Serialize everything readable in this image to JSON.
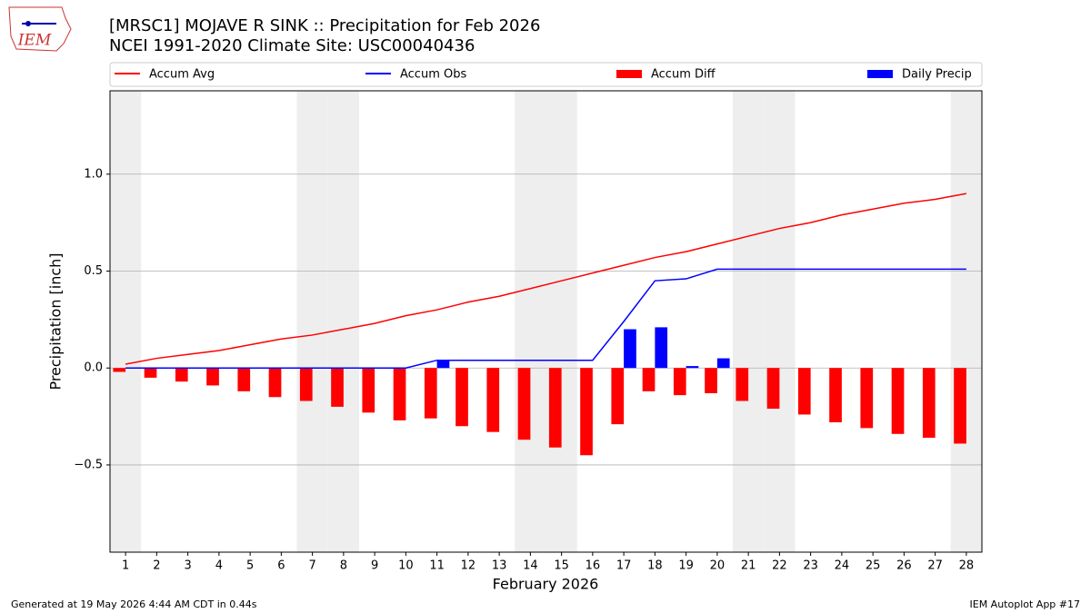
{
  "logo": "IEM",
  "footer": {
    "left": "Generated at 19 May 2026 4:44 AM CDT in 0.44s",
    "right": "IEM Autoplot App #17"
  },
  "chart_data": {
    "type": "combo",
    "title": "[MRSC1] MOJAVE R SINK :: Precipitation for Feb 2026",
    "subtitle": "NCEI 1991-2020 Climate Site: USC00040436",
    "x_label": "February 2026",
    "y_label": "Precipitation [inch]",
    "x": [
      1,
      2,
      3,
      4,
      5,
      6,
      7,
      8,
      9,
      10,
      11,
      12,
      13,
      14,
      15,
      16,
      17,
      18,
      19,
      20,
      21,
      22,
      23,
      24,
      25,
      26,
      27,
      28
    ],
    "xlim": [
      0.5,
      28.5
    ],
    "xticks": [
      1,
      2,
      3,
      4,
      5,
      6,
      7,
      8,
      9,
      10,
      11,
      12,
      13,
      14,
      15,
      16,
      17,
      18,
      19,
      20,
      21,
      22,
      23,
      24,
      25,
      26,
      27,
      28
    ],
    "ylim": [
      -0.95,
      1.43
    ],
    "yticks": [
      {
        "value": -0.5,
        "label": "−0.5"
      },
      {
        "value": 0,
        "label": "0.0"
      },
      {
        "value": 0.5,
        "label": "0.5"
      },
      {
        "value": 1,
        "label": "1.0"
      }
    ],
    "grid": true,
    "shaded_days": [
      1,
      7,
      8,
      14,
      15,
      21,
      22,
      28
    ],
    "series": [
      {
        "name": "Accum Avg",
        "kind": "line",
        "color": "#ff0000",
        "values": [
          0.02,
          0.05,
          0.07,
          0.09,
          0.12,
          0.15,
          0.17,
          0.2,
          0.23,
          0.27,
          0.3,
          0.34,
          0.37,
          0.41,
          0.45,
          0.49,
          0.53,
          0.57,
          0.6,
          0.64,
          0.68,
          0.72,
          0.75,
          0.79,
          0.82,
          0.85,
          0.87,
          0.9
        ]
      },
      {
        "name": "Accum Obs",
        "kind": "line",
        "color": "#0000ff",
        "values": [
          0,
          0,
          0,
          0,
          0,
          0,
          0,
          0,
          0,
          0,
          0.04,
          0.04,
          0.04,
          0.04,
          0.04,
          0.04,
          0.24,
          0.45,
          0.46,
          0.51,
          0.51,
          0.51,
          0.51,
          0.51,
          0.51,
          0.51,
          0.51,
          0.51
        ]
      },
      {
        "name": "Accum Diff",
        "kind": "bar",
        "color": "#ff0000",
        "values": [
          -0.02,
          -0.05,
          -0.07,
          -0.09,
          -0.12,
          -0.15,
          -0.17,
          -0.2,
          -0.23,
          -0.27,
          -0.26,
          -0.3,
          -0.33,
          -0.37,
          -0.41,
          -0.45,
          -0.29,
          -0.12,
          -0.14,
          -0.13,
          -0.17,
          -0.21,
          -0.24,
          -0.28,
          -0.31,
          -0.34,
          -0.36,
          -0.39
        ]
      },
      {
        "name": "Daily Precip",
        "kind": "bar",
        "color": "#0000ff",
        "values": [
          0,
          0,
          0,
          0,
          0,
          0,
          0,
          0,
          0,
          0,
          0.04,
          0,
          0,
          0,
          0,
          0,
          0.2,
          0.21,
          0.01,
          0.05,
          0,
          0,
          0,
          0,
          0,
          0,
          0,
          0
        ]
      }
    ]
  }
}
